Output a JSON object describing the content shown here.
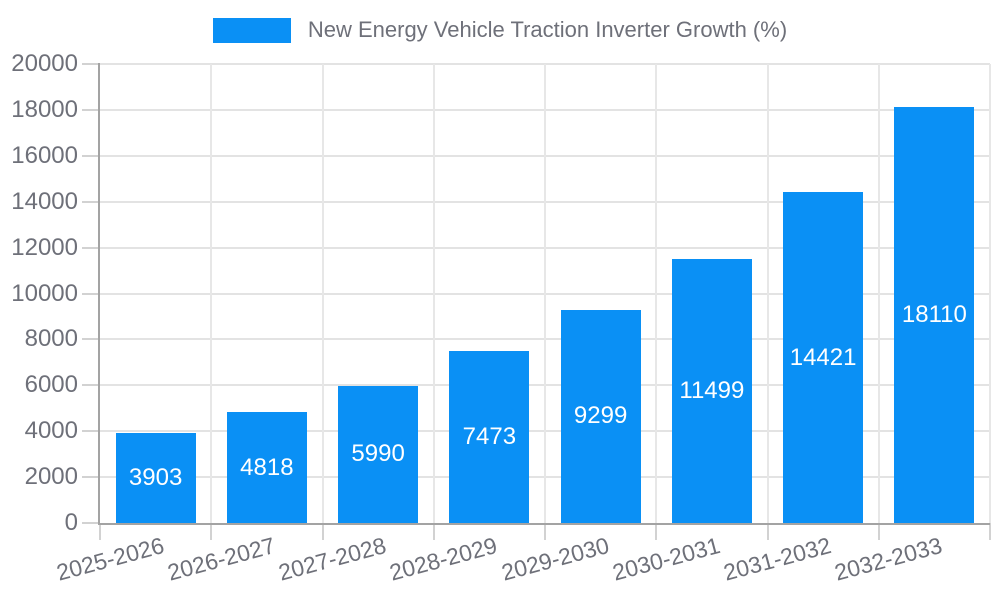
{
  "chart_data": {
    "type": "bar",
    "title": "New Energy Vehicle Traction Inverter Growth (%)",
    "categories": [
      "2025-2026",
      "2026-2027",
      "2027-2028",
      "2028-2029",
      "2029-2030",
      "2030-2031",
      "2031-2032",
      "2032-2033"
    ],
    "values": [
      3903,
      4818,
      5990,
      7473,
      9299,
      11499,
      14421,
      18110
    ],
    "xlabel": "",
    "ylabel": "",
    "ylim": [
      0,
      20000
    ],
    "ytick_step": 2000,
    "ytick_labels": [
      "0",
      "2000",
      "4000",
      "6000",
      "8000",
      "10000",
      "12000",
      "14000",
      "16000",
      "18000",
      "20000"
    ],
    "grid": true,
    "legend_position": "top-center",
    "x_tick_rotation_deg": -15,
    "bar_color": "#0a90f5",
    "bar_label_color": "#ffffff"
  },
  "colors": {
    "background": "#ffffff",
    "text": "#6e7079",
    "grid_horizontal": "#e3e3e3",
    "grid_vertical": "#e7e7e7",
    "axis_line": "#a3a3a3",
    "tick": "#d2d2d2"
  }
}
